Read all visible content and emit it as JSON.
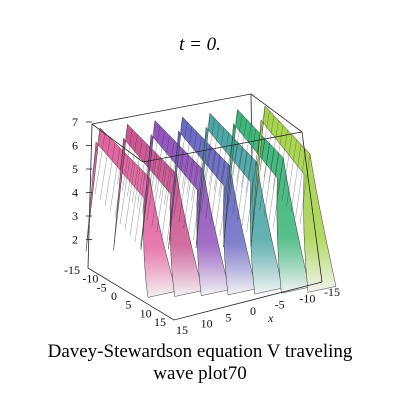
{
  "chart_data": {
    "type": "surface3d",
    "title": "t = 0.",
    "caption_line1": "Davey-Stewardson equation V traveling",
    "caption_line2": "wave plot70",
    "z_ticks": [
      "7",
      "6",
      "5",
      "4",
      "3",
      "2"
    ],
    "y_ticks": [
      "-15",
      "-10",
      "-5",
      "0",
      "5",
      "10",
      "15"
    ],
    "x_ticks": [
      "15",
      "10",
      "5",
      "0",
      "-5",
      "-10",
      "-15"
    ],
    "x_axis_label": "x",
    "zlim": [
      1.5,
      7
    ],
    "xlim": [
      -15,
      15
    ],
    "ylim": [
      -15,
      15
    ],
    "peak_count": 7,
    "peak_height": 7,
    "base_height": 2,
    "colormap": [
      "#e05a9a",
      "#c84a8a",
      "#8a4ab8",
      "#6060c0",
      "#40a0a0",
      "#30b070",
      "#a0d040"
    ]
  }
}
